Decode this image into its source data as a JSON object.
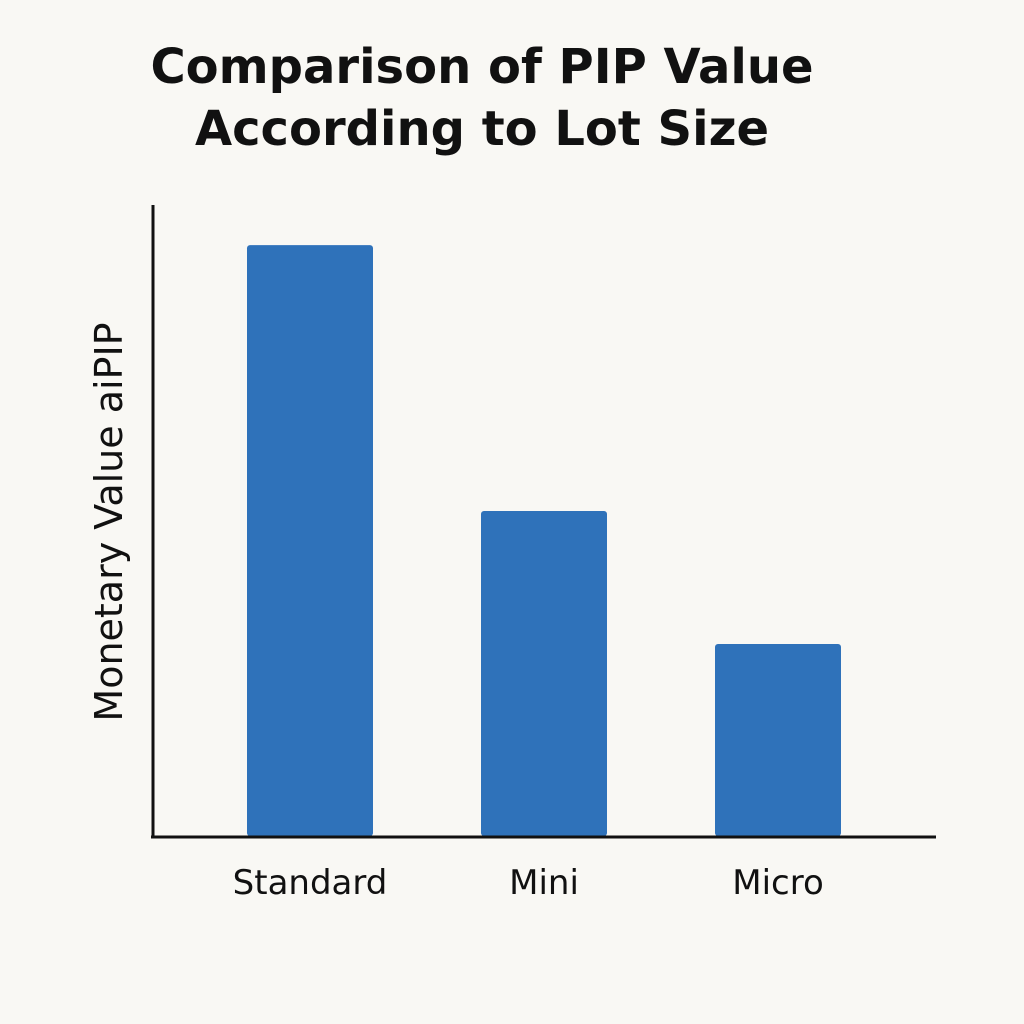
{
  "chart_data": {
    "type": "bar",
    "title_lines": [
      "Comparison of PIP Value",
      "According to Lot Size"
    ],
    "categories": [
      "Standard",
      "Mini",
      "Micro"
    ],
    "values": [
      10,
      5.5,
      3.25
    ],
    "xlabel": "",
    "ylabel": "Monetary Value aiPIP",
    "ylim": [
      0,
      11
    ],
    "grid": false,
    "legend": "none",
    "bar_color": "#2f72ba",
    "axis_color": "#111111",
    "background": "#f9f8f4"
  }
}
